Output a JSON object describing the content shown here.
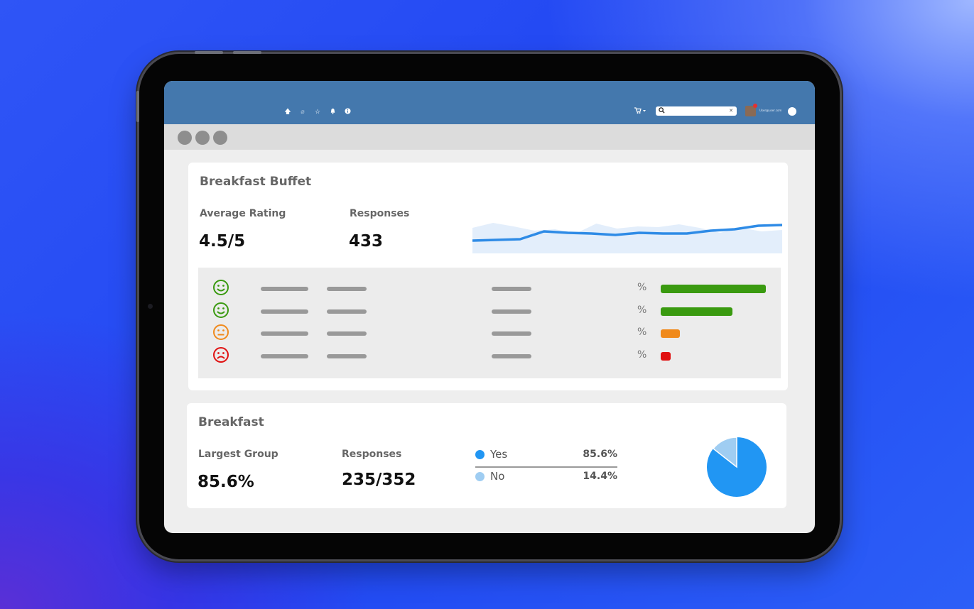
{
  "colors": {
    "topbar": "#4478ad",
    "positive": "#3a9a10",
    "neutral": "#f08a1c",
    "negative": "#e01010",
    "yes": "#2196f3",
    "no": "#9fcdf2",
    "sparkline": "#2e8be6"
  },
  "topbar": {
    "icons": [
      "up-arrow-icon",
      "link-icon",
      "star-icon",
      "bell-icon",
      "info-icon"
    ],
    "user_label": "User@user.com"
  },
  "card1": {
    "title": "Breakfast Buffet",
    "avg_rating_label": "Average Rating",
    "avg_rating_value": "4.5/5",
    "responses_label": "Responses",
    "responses_value": "433",
    "rating_rows": [
      {
        "face": "happy-face-icon",
        "pct_symbol": "%",
        "share": 0.54,
        "color": "#3a9a10"
      },
      {
        "face": "happy-face-icon",
        "pct_symbol": "%",
        "share": 0.37,
        "color": "#3a9a10"
      },
      {
        "face": "neutral-face-icon",
        "pct_symbol": "%",
        "share": 0.1,
        "color": "#f08a1c"
      },
      {
        "face": "sad-face-icon",
        "pct_symbol": "%",
        "share": 0.05,
        "color": "#e01010"
      }
    ]
  },
  "card2": {
    "title": "Breakfast",
    "largest_group_label": "Largest Group",
    "largest_group_value": "85.6%",
    "responses_label": "Responses",
    "responses_value": "235/352",
    "legend": [
      {
        "label": "Yes",
        "value": "85.6%",
        "color": "#2196f3"
      },
      {
        "label": "No",
        "value": "14.4%",
        "color": "#9fcdf2"
      }
    ]
  },
  "chart_data": [
    {
      "type": "line",
      "title": "",
      "series": [
        {
          "values": [
            48,
            47,
            46,
            35,
            37,
            38,
            40,
            37,
            38,
            38,
            34,
            32,
            27,
            26
          ]
        }
      ],
      "area_values": [
        30,
        23,
        28,
        34,
        32,
        38,
        24,
        31,
        28,
        29,
        25,
        30,
        37,
        30,
        35,
        33
      ]
    },
    {
      "type": "pie",
      "categories": [
        "Yes",
        "No"
      ],
      "values": [
        85.6,
        14.4
      ]
    }
  ]
}
